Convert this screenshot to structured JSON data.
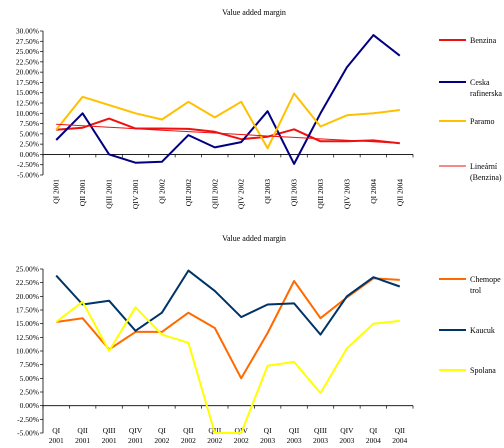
{
  "charts": [
    {
      "type": "line",
      "title": "Value added margin",
      "categories": [
        "QI 2001",
        "QII 2001",
        "QIII 2001",
        "QIV 2001",
        "QI 2002",
        "QII 2002",
        "QIII 2002",
        "QIV 2002",
        "QI 2003",
        "QII 2003",
        "QIII 2003",
        "QIV 2003",
        "QI 2004",
        "QII 2004"
      ],
      "ylim": [
        -5,
        30
      ],
      "yticks": [
        "-5.00%",
        "-2.50%",
        "0.00%",
        "2.50%",
        "5.00%",
        "7.50%",
        "10.00%",
        "12.50%",
        "15.00%",
        "17.50%",
        "20.00%",
        "22.50%",
        "25.00%",
        "27.50%",
        "30.00%"
      ],
      "series": [
        {
          "name": "Benzina",
          "color": "#ee1111",
          "values": [
            6.0,
            6.5,
            8.7,
            6.3,
            6.3,
            6.2,
            5.5,
            3.7,
            4.3,
            6.1,
            3.2,
            3.2,
            3.4,
            2.7
          ]
        },
        {
          "name": "Ceska rafinerska",
          "color": "#000080",
          "values": [
            3.5,
            10.0,
            0.0,
            -2.0,
            -1.8,
            4.7,
            1.7,
            3.0,
            10.5,
            -2.3,
            10.0,
            21.2,
            29.0,
            24.0
          ]
        },
        {
          "name": "Paramo",
          "color": "#ffc000",
          "values": [
            6.0,
            14.0,
            12.0,
            10.0,
            8.5,
            12.8,
            9.0,
            12.8,
            1.5,
            14.8,
            6.8,
            9.5,
            10.0,
            10.8
          ]
        },
        {
          "name": "Lineární (Benzina)",
          "color": "#ee1111",
          "thin": true,
          "values": [
            7.32,
            6.97,
            6.61,
            6.26,
            5.9,
            5.55,
            5.2,
            4.84,
            4.49,
            4.13,
            3.78,
            3.43,
            3.07,
            2.72
          ]
        }
      ]
    },
    {
      "type": "line",
      "title": "Value added margin",
      "categories": [
        "QI 2001",
        "QII 2001",
        "QIII 2001",
        "QIV 2001",
        "QI 2002",
        "QII 2002",
        "QIII 2002",
        "QIV 2002",
        "QI 2003",
        "QII 2003",
        "QIII 2003",
        "QIV 2003",
        "QI 2004",
        "QII 2004"
      ],
      "ylim": [
        -5,
        25
      ],
      "yticks": [
        "-5.00%",
        "-2.50%",
        "0.00%",
        "2.50%",
        "5.00%",
        "7.50%",
        "10.00%",
        "12.50%",
        "15.00%",
        "17.50%",
        "20.00%",
        "22.50%",
        "25.00%"
      ],
      "series": [
        {
          "name": "Chemopetrol",
          "color": "#ff6a00",
          "values": [
            15.3,
            16.0,
            10.3,
            13.5,
            13.5,
            17.0,
            14.2,
            5.0,
            13.3,
            22.8,
            16.0,
            19.8,
            23.3,
            23.0
          ]
        },
        {
          "name": "Kaucuk",
          "color": "#003366",
          "values": [
            23.8,
            18.5,
            19.2,
            13.7,
            17.0,
            24.7,
            21.0,
            16.2,
            18.5,
            18.7,
            13.0,
            20.0,
            23.5,
            21.8
          ]
        },
        {
          "name": "Spolana",
          "color": "#ffff00",
          "values": [
            15.3,
            19.0,
            10.0,
            18.0,
            13.0,
            11.5,
            -5.0,
            -5.0,
            7.3,
            8.0,
            2.3,
            10.5,
            15.0,
            15.5
          ]
        }
      ]
    }
  ]
}
